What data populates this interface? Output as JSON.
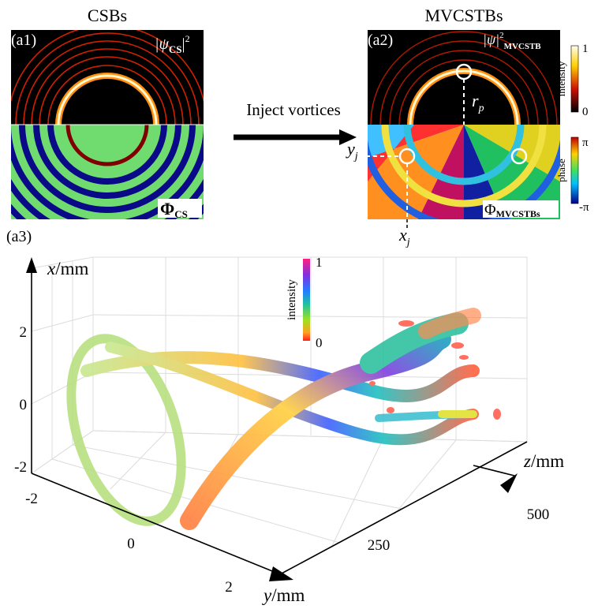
{
  "panel_a1": {
    "heading": "CSBs",
    "label": "(a1)",
    "intensity_label": {
      "open": "|ψ",
      "sub": "CS",
      "close": "|",
      "sup": "2"
    },
    "phase_label": {
      "main": "Φ",
      "sub": "CS"
    }
  },
  "arrow_label": "Inject vortices",
  "panel_a2": {
    "heading": "MVCSTBs",
    "label": "(a2)",
    "intensity_label": {
      "open": "|ψ|",
      "sup": "2",
      "sub": "MVCSTB"
    },
    "radius_label": {
      "main": "r",
      "sub": "p"
    },
    "y_label": {
      "main": "y",
      "sub": "j"
    },
    "x_label": {
      "main": "x",
      "sub": "j"
    },
    "phase_label": {
      "main": "Φ",
      "sub": "MVCSTBs"
    },
    "intensity_bar": {
      "title": "intensity",
      "ticks": [
        "1",
        "0"
      ]
    },
    "phase_bar": {
      "title": "phase",
      "ticks": [
        "π",
        "-π"
      ]
    }
  },
  "panel_a3": {
    "label": "(a3)",
    "x_axis": {
      "var": "x",
      "unit": "/mm",
      "ticks": [
        "2",
        "0",
        "-2"
      ]
    },
    "y_axis": {
      "var": "y",
      "unit": "/mm",
      "ticks": [
        "-2",
        "0",
        "2"
      ]
    },
    "z_axis": {
      "var": "z",
      "unit": "/mm",
      "ticks": [
        "250",
        "500"
      ]
    },
    "colorbar": {
      "title": "intensity",
      "ticks": [
        "1",
        "0"
      ]
    }
  }
}
